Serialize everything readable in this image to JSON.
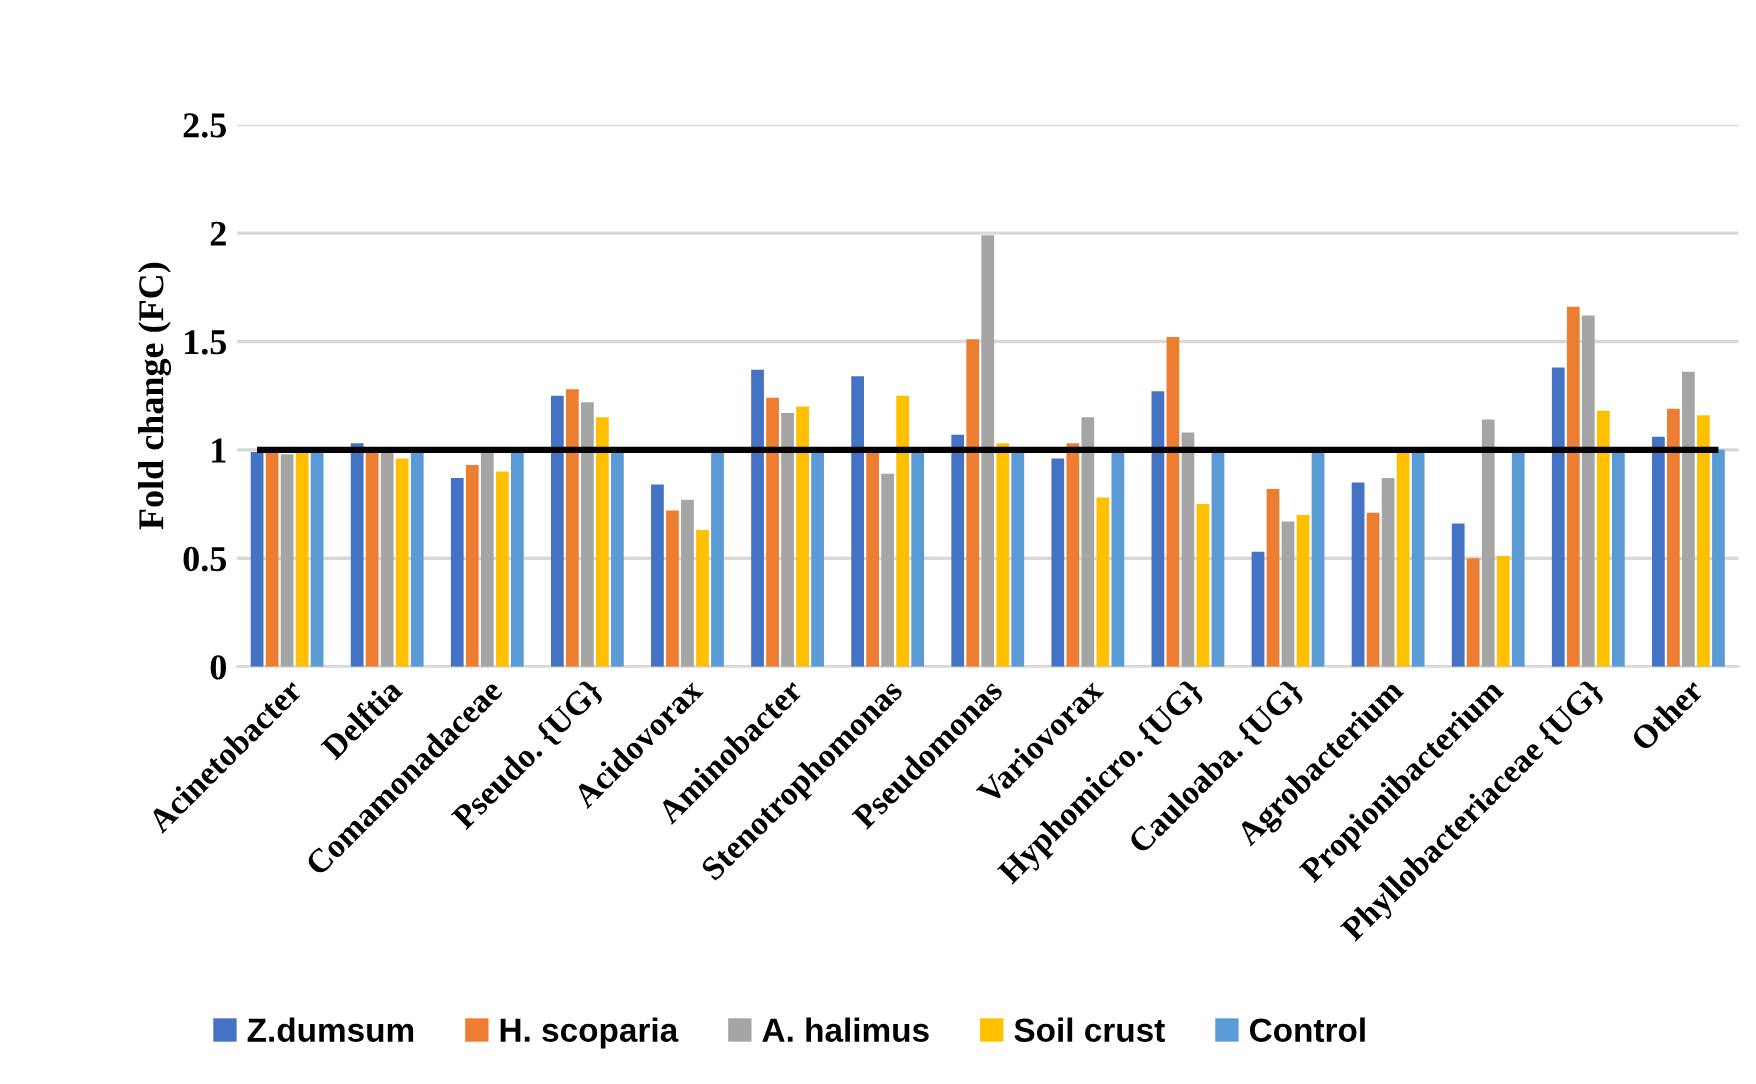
{
  "chart_data": {
    "type": "bar",
    "ylabel": "Fold change (FC)",
    "categories": [
      "Acinetobacter",
      "Delftia",
      "Comamonadaceae",
      "Pseudo. {UG}",
      "Acidovorax",
      "Aminobacter",
      "Stenotrophomonas",
      "Pseudomonas",
      "Variovorax",
      "Hyphomicro. {UG}",
      "Cauloaba. {UG}",
      "Agrobacterium",
      "Propionibacterium",
      "Phyllobacteriaceae {UG}",
      "Other"
    ],
    "series": [
      {
        "name": "Z.dumsum",
        "color": "#4472c4",
        "values": [
          0.99,
          1.03,
          0.87,
          1.25,
          0.84,
          1.37,
          1.34,
          1.07,
          0.96,
          1.27,
          0.53,
          0.85,
          0.66,
          1.38,
          1.06
        ]
      },
      {
        "name": "H. scoparia",
        "color": "#ed7d31",
        "values": [
          0.99,
          0.99,
          0.93,
          1.28,
          0.72,
          1.24,
          0.99,
          1.51,
          1.03,
          1.52,
          0.82,
          0.71,
          0.5,
          1.66,
          1.19
        ]
      },
      {
        "name": "A. halimus",
        "color": "#a5a5a5",
        "values": [
          0.98,
          1.0,
          0.99,
          1.22,
          0.77,
          1.17,
          0.89,
          1.99,
          1.15,
          1.08,
          0.67,
          0.87,
          1.14,
          1.62,
          1.36
        ]
      },
      {
        "name": "Soil crust",
        "color": "#ffc000",
        "values": [
          1.0,
          0.96,
          0.9,
          1.15,
          0.63,
          1.2,
          1.25,
          1.03,
          0.78,
          0.75,
          0.7,
          0.99,
          0.51,
          1.18,
          1.16
        ]
      },
      {
        "name": "Control",
        "color": "#5b9bd5",
        "values": [
          1.0,
          1.0,
          1.0,
          1.0,
          1.0,
          1.0,
          1.0,
          1.0,
          1.0,
          1.0,
          1.0,
          1.0,
          1.0,
          1.0,
          1.0
        ]
      }
    ],
    "ylim": [
      0,
      2.5
    ],
    "yticks": [
      0,
      0.5,
      1,
      1.5,
      2,
      2.5
    ],
    "ref_lines": [
      {
        "axis": "y",
        "value": 1,
        "color": "#000000",
        "line_style": "solid"
      }
    ],
    "grid": "y",
    "legend": "bottom"
  }
}
